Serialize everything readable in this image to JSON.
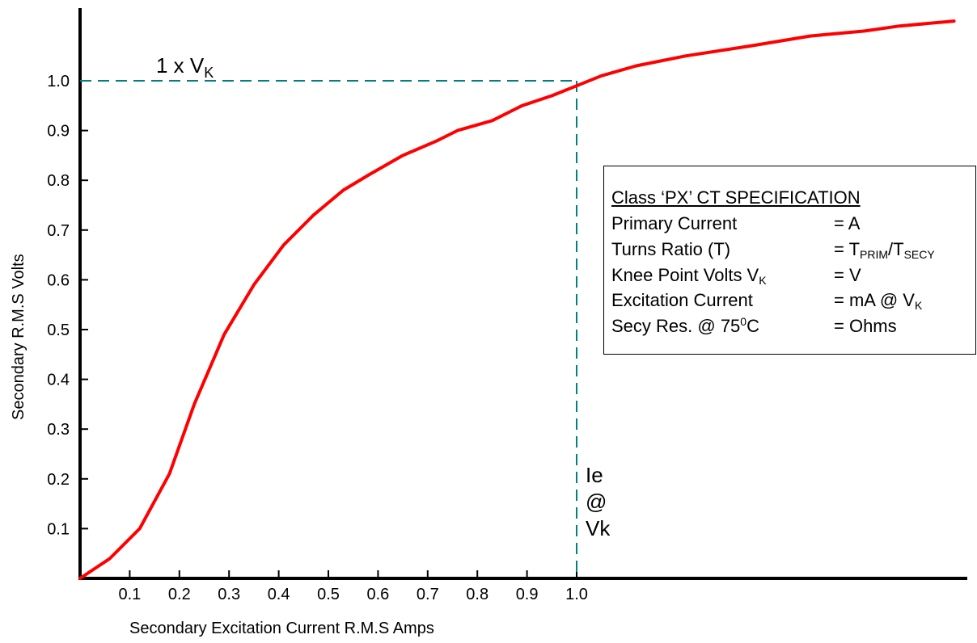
{
  "chart_data": {
    "type": "line",
    "xlabel": "Secondary Excitation Current R.M.S Amps",
    "ylabel": "Secondary R.M.S Volts",
    "xlim": [
      0,
      1.77
    ],
    "ylim": [
      0,
      1.13
    ],
    "x_ticks": [
      "0.1",
      "0.2",
      "0.3",
      "0.4",
      "0.5",
      "0.6",
      "0.7",
      "0.8",
      "0.9",
      "1.0"
    ],
    "y_ticks": [
      "0.1",
      "0.2",
      "0.3",
      "0.4",
      "0.5",
      "0.6",
      "0.7",
      "0.8",
      "0.9",
      "1.0"
    ],
    "grid": false,
    "series": [
      {
        "color": "#ff0000",
        "x": [
          0.0,
          0.06,
          0.12,
          0.18,
          0.23,
          0.29,
          0.35,
          0.41,
          0.47,
          0.53,
          0.58,
          0.65,
          0.72,
          0.76,
          0.83,
          0.89,
          0.95,
          1.0,
          1.05,
          1.12,
          1.22,
          1.35,
          1.47,
          1.58,
          1.65,
          1.76
        ],
        "y": [
          0.0,
          0.04,
          0.1,
          0.21,
          0.35,
          0.49,
          0.59,
          0.67,
          0.73,
          0.78,
          0.81,
          0.85,
          0.88,
          0.9,
          0.92,
          0.95,
          0.97,
          0.99,
          1.01,
          1.03,
          1.05,
          1.07,
          1.09,
          1.1,
          1.11,
          1.12
        ]
      }
    ],
    "annotations": {
      "vk_line_label": "1 x V",
      "vk_line_label_sub": "K",
      "ie_label_lines": [
        "Ie",
        "@",
        "Vk"
      ],
      "reference_x": 1.0,
      "reference_y": 1.0
    }
  },
  "spec": {
    "title": "Class ‘PX’ CT SPECIFICATION",
    "primary_current_label": "Primary Current",
    "primary_current_value": "= A",
    "turns_ratio_label": "Turns Ratio (T)",
    "turns_ratio_value_pre": "= T",
    "turns_ratio_sub1": "PRIM",
    "turns_ratio_mid": "/T",
    "turns_ratio_sub2": "SECY",
    "knee_label": "Knee Point Volts V",
    "knee_label_sub": "K",
    "knee_value": "= V",
    "excitation_label": "Excitation Current",
    "excitation_value": "= mA @ V",
    "excitation_value_sub": "K",
    "secy_label_pre": "Secy Res. @ 75",
    "secy_label_sup": "0",
    "secy_label_post": "C",
    "secy_value": "= Ohms"
  },
  "colors": {
    "curve": "#ff0000",
    "reference_lines": "#008080",
    "axes": "#000000"
  }
}
